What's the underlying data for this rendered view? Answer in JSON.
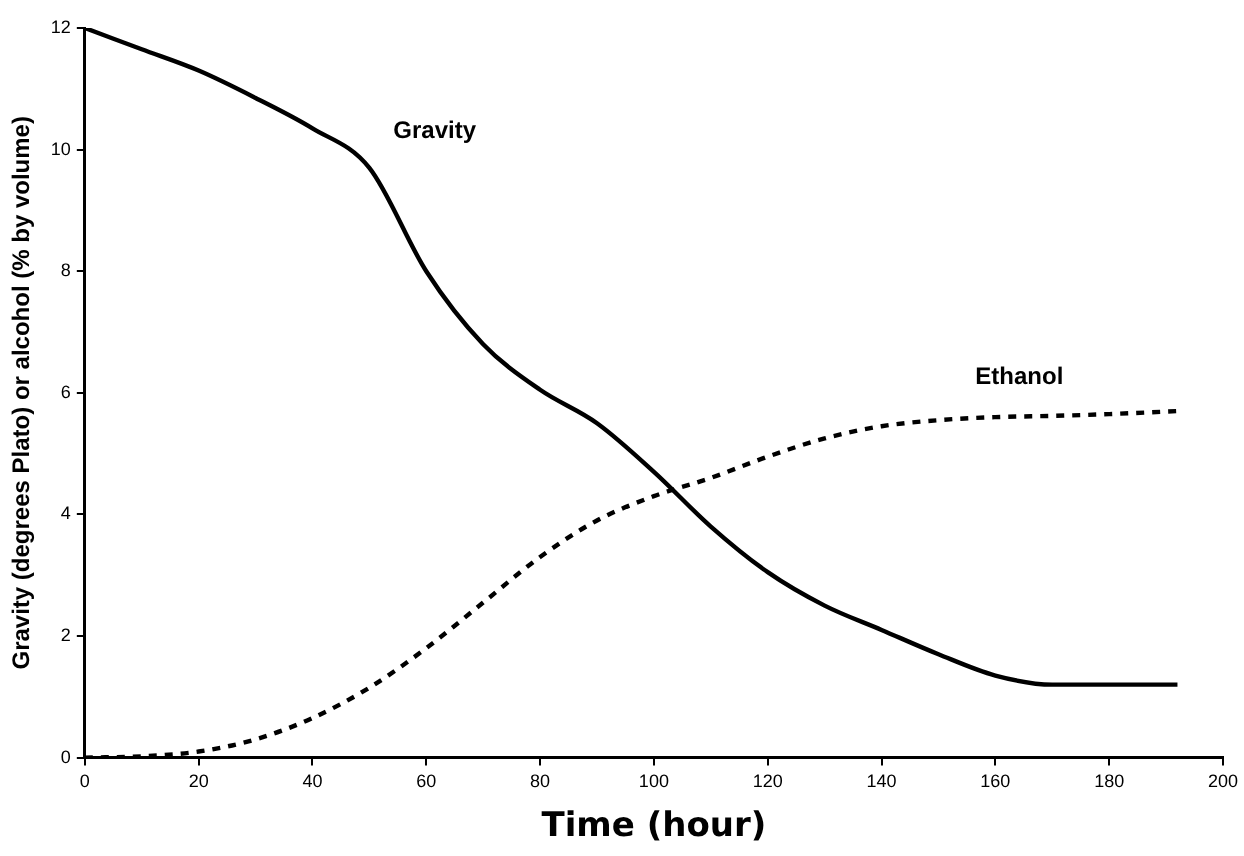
{
  "chart_data": {
    "type": "line",
    "xlabel": "Time (hour)",
    "ylabel": "Gravity (degrees Plato) or alcohol (% by volume)",
    "x": [
      0,
      10,
      20,
      30,
      40,
      50,
      60,
      70,
      80,
      90,
      100,
      110,
      120,
      130,
      140,
      150,
      160,
      170,
      180,
      192
    ],
    "xlim": [
      0,
      200
    ],
    "xticks": [
      0,
      20,
      40,
      60,
      80,
      100,
      120,
      140,
      160,
      180,
      200
    ],
    "ylim": [
      0,
      12
    ],
    "yticks": [
      0,
      2,
      4,
      6,
      8,
      10,
      12
    ],
    "grid": false,
    "legend": false,
    "marker": "none",
    "series": [
      {
        "name": "Gravity",
        "color": "#000000",
        "line_style": "solid",
        "values": [
          12,
          11.65,
          11.3,
          10.85,
          10.35,
          9.7,
          8.0,
          6.8,
          6.05,
          5.5,
          4.7,
          3.8,
          3.05,
          2.5,
          2.1,
          1.7,
          1.35,
          1.2,
          1.2,
          1.2
        ]
      },
      {
        "name": "Ethanol",
        "color": "#000000",
        "line_style": "dashed",
        "values": [
          0,
          0.02,
          0.1,
          0.3,
          0.65,
          1.15,
          1.8,
          2.55,
          3.3,
          3.9,
          4.3,
          4.6,
          4.95,
          5.25,
          5.45,
          5.55,
          5.6,
          5.62,
          5.65,
          5.7
        ]
      }
    ]
  }
}
